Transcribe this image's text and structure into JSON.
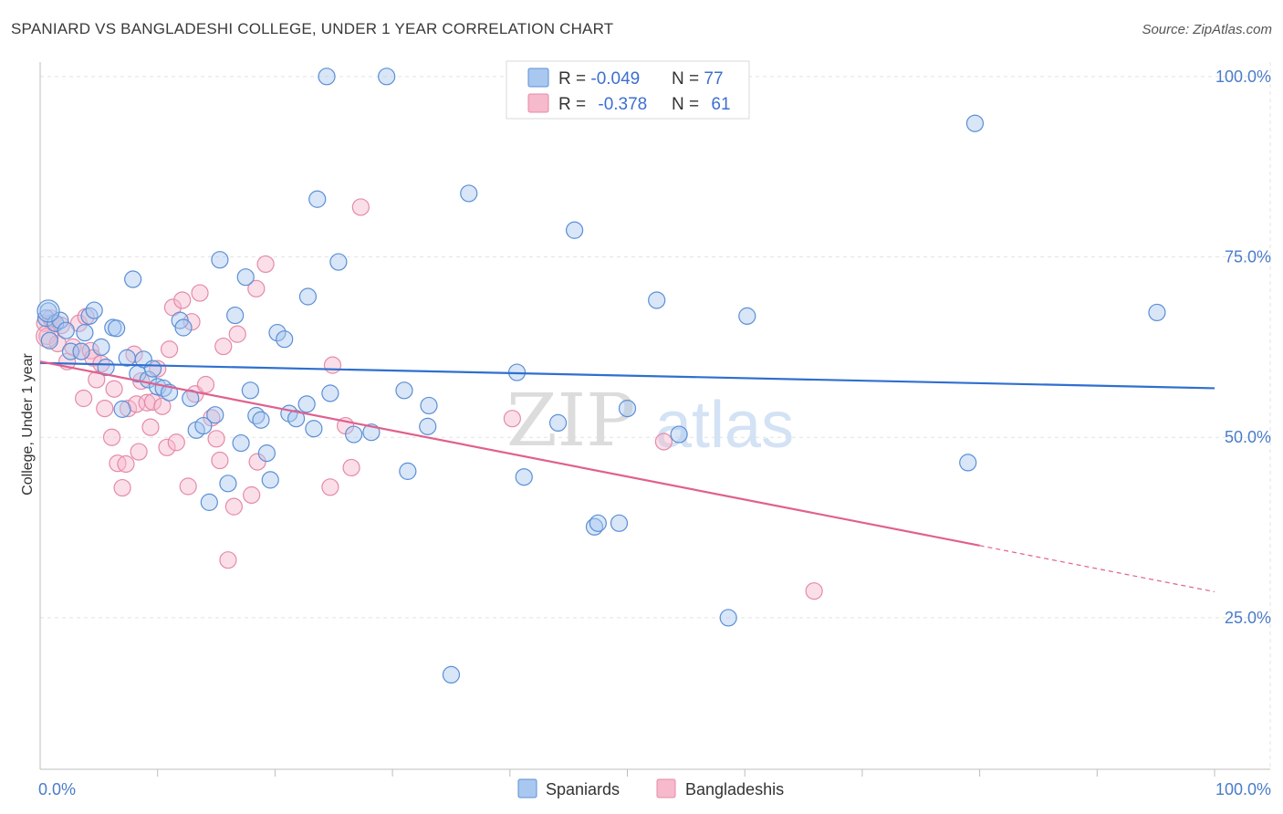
{
  "header": {
    "title": "SPANIARD VS BANGLADESHI COLLEGE, UNDER 1 YEAR CORRELATION CHART",
    "source": "Source: ZipAtlas.com"
  },
  "watermark": {
    "zip": "ZIP",
    "atlas": "atlas"
  },
  "colors": {
    "spaniards_fill": "#a9c8f0",
    "spaniards_stroke": "#5b8fd6",
    "spaniards_line": "#2f6fd0",
    "bangladeshis_fill": "#f7b9cc",
    "bangladeshis_stroke": "#e58aa8",
    "bangladeshis_line": "#e0608e",
    "grid": "#e3e3e3",
    "tick_label": "#4a7cc9"
  },
  "legend": {
    "rows": [
      {
        "r_label": "R = ",
        "r_value": "-0.049",
        "n_label": "N = ",
        "n_value": "77"
      },
      {
        "r_label": "R = ",
        "r_value": "-0.378",
        "n_label": "N = ",
        "n_value": "61"
      }
    ]
  },
  "chart_data": {
    "type": "scatter",
    "title": "SPANIARD VS BANGLADESHI COLLEGE, UNDER 1 YEAR CORRELATION CHART",
    "xlabel": "",
    "ylabel": "College, Under 1 year",
    "xlim": [
      0,
      100
    ],
    "ylim": [
      4,
      102
    ],
    "x_tick_labels": [
      {
        "value": 0,
        "label": "0.0%"
      },
      {
        "value": 100,
        "label": "100.0%"
      }
    ],
    "y_tick_labels": [
      {
        "value": 25,
        "label": "25.0%"
      },
      {
        "value": 50,
        "label": "50.0%"
      },
      {
        "value": 75,
        "label": "75.0%"
      },
      {
        "value": 100,
        "label": "100.0%"
      }
    ],
    "grid": true,
    "legend_position": "top-center",
    "series": [
      {
        "name": "Spaniards",
        "r": -0.049,
        "n": 77,
        "trend": {
          "x": [
            0,
            100
          ],
          "y": [
            60.3,
            56.8
          ]
        },
        "points": [
          [
            0.5,
            66.5
          ],
          [
            0.7,
            67.5
          ],
          [
            0.8,
            63.4
          ],
          [
            1.3,
            65.8
          ],
          [
            1.7,
            66.2
          ],
          [
            2.2,
            64.8
          ],
          [
            2.6,
            61.9
          ],
          [
            3.5,
            61.9
          ],
          [
            3.8,
            64.5
          ],
          [
            4.2,
            66.8
          ],
          [
            4.6,
            67.6
          ],
          [
            5.2,
            62.5
          ],
          [
            5.6,
            59.7
          ],
          [
            6.2,
            65.2
          ],
          [
            6.5,
            65.1
          ],
          [
            7.0,
            53.9
          ],
          [
            7.4,
            61.0
          ],
          [
            7.9,
            71.9
          ],
          [
            8.3,
            58.8
          ],
          [
            8.8,
            60.8
          ],
          [
            9.2,
            58.0
          ],
          [
            9.6,
            59.5
          ],
          [
            10.0,
            57.0
          ],
          [
            10.5,
            56.8
          ],
          [
            11.0,
            56.2
          ],
          [
            11.9,
            66.2
          ],
          [
            12.2,
            65.2
          ],
          [
            12.8,
            55.4
          ],
          [
            13.3,
            51.0
          ],
          [
            13.9,
            51.6
          ],
          [
            14.4,
            41.0
          ],
          [
            14.9,
            53.1
          ],
          [
            15.3,
            74.6
          ],
          [
            16.0,
            43.6
          ],
          [
            16.6,
            66.9
          ],
          [
            17.1,
            49.2
          ],
          [
            17.5,
            72.2
          ],
          [
            17.9,
            56.5
          ],
          [
            18.4,
            53.0
          ],
          [
            18.8,
            52.4
          ],
          [
            19.3,
            47.8
          ],
          [
            19.6,
            44.1
          ],
          [
            20.2,
            64.5
          ],
          [
            20.8,
            63.6
          ],
          [
            21.2,
            53.3
          ],
          [
            21.8,
            52.6
          ],
          [
            22.7,
            54.6
          ],
          [
            22.8,
            69.5
          ],
          [
            23.3,
            51.2
          ],
          [
            23.6,
            83.0
          ],
          [
            24.4,
            100.0
          ],
          [
            24.7,
            56.1
          ],
          [
            25.4,
            74.3
          ],
          [
            26.7,
            50.4
          ],
          [
            28.2,
            50.7
          ],
          [
            29.5,
            100.0
          ],
          [
            31.0,
            56.5
          ],
          [
            31.3,
            45.3
          ],
          [
            33.0,
            51.5
          ],
          [
            33.1,
            54.4
          ],
          [
            36.5,
            83.8
          ],
          [
            40.6,
            59.0
          ],
          [
            41.2,
            44.5
          ],
          [
            44.1,
            52.0
          ],
          [
            45.5,
            78.7
          ],
          [
            47.2,
            37.6
          ],
          [
            47.5,
            38.1
          ],
          [
            49.3,
            38.1
          ],
          [
            50.0,
            54.0
          ],
          [
            52.5,
            69.0
          ],
          [
            54.4,
            50.4
          ],
          [
            58.6,
            25.0
          ],
          [
            60.2,
            66.8
          ],
          [
            79.0,
            46.5
          ],
          [
            79.6,
            93.5
          ],
          [
            95.1,
            67.3
          ],
          [
            35.0,
            17.1
          ]
        ]
      },
      {
        "name": "Bangladeshis",
        "r": -0.378,
        "n": 61,
        "trend": {
          "x": [
            0,
            80
          ],
          "y": [
            60.5,
            35.0
          ]
        },
        "trend_dashed": {
          "x": [
            80,
            100
          ],
          "y": [
            35.0,
            28.6
          ]
        },
        "points": [
          [
            0.4,
            65.8
          ],
          [
            0.6,
            64.0
          ],
          [
            0.9,
            66.5
          ],
          [
            1.1,
            65.9
          ],
          [
            1.5,
            63.0
          ],
          [
            1.8,
            65.5
          ],
          [
            2.3,
            60.5
          ],
          [
            2.8,
            62.5
          ],
          [
            3.3,
            65.8
          ],
          [
            3.5,
            61.9
          ],
          [
            3.9,
            66.7
          ],
          [
            3.7,
            55.4
          ],
          [
            4.3,
            62.0
          ],
          [
            4.5,
            61.0
          ],
          [
            4.8,
            58.0
          ],
          [
            5.2,
            60.2
          ],
          [
            5.5,
            54.0
          ],
          [
            6.1,
            50.0
          ],
          [
            6.3,
            56.7
          ],
          [
            6.6,
            46.4
          ],
          [
            7.0,
            43.0
          ],
          [
            7.3,
            46.3
          ],
          [
            7.5,
            54.0
          ],
          [
            8.0,
            61.5
          ],
          [
            8.2,
            54.6
          ],
          [
            8.4,
            48.0
          ],
          [
            8.6,
            57.8
          ],
          [
            9.1,
            54.8
          ],
          [
            9.4,
            51.4
          ],
          [
            9.6,
            54.9
          ],
          [
            10.0,
            59.5
          ],
          [
            10.4,
            54.3
          ],
          [
            10.8,
            48.6
          ],
          [
            11.0,
            62.2
          ],
          [
            11.3,
            68.0
          ],
          [
            11.6,
            49.3
          ],
          [
            12.1,
            69.0
          ],
          [
            12.6,
            43.2
          ],
          [
            12.9,
            66.0
          ],
          [
            13.2,
            56.0
          ],
          [
            13.6,
            70.0
          ],
          [
            14.1,
            57.3
          ],
          [
            14.6,
            52.7
          ],
          [
            15.0,
            49.8
          ],
          [
            15.3,
            46.8
          ],
          [
            15.6,
            62.6
          ],
          [
            16.0,
            33.0
          ],
          [
            16.5,
            40.4
          ],
          [
            16.8,
            64.3
          ],
          [
            18.0,
            42.0
          ],
          [
            18.5,
            46.6
          ],
          [
            19.2,
            74.0
          ],
          [
            24.7,
            43.1
          ],
          [
            24.9,
            60.0
          ],
          [
            26.0,
            51.6
          ],
          [
            26.5,
            45.8
          ],
          [
            27.3,
            81.9
          ],
          [
            40.2,
            52.6
          ],
          [
            53.1,
            49.4
          ],
          [
            65.9,
            28.7
          ],
          [
            18.4,
            70.6
          ]
        ]
      }
    ]
  },
  "bottom_legend": {
    "spaniards": "Spaniards",
    "bangladeshis": "Bangladeshis"
  }
}
